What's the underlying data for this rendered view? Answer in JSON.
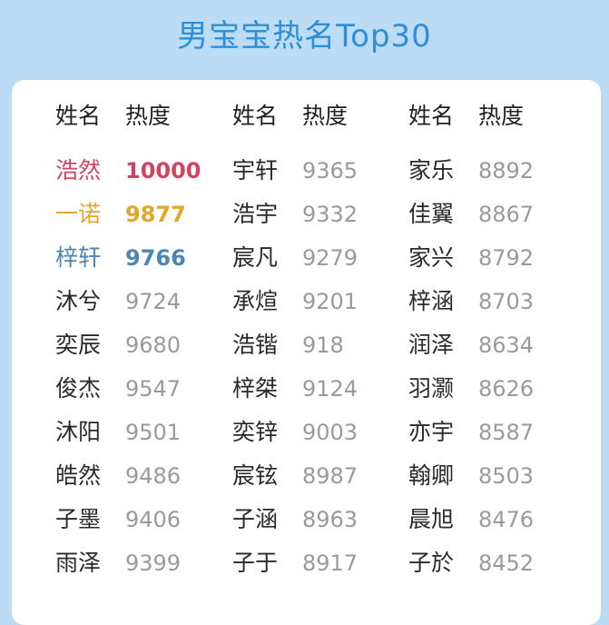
{
  "title": "男宝宝热名Top30",
  "headers": {
    "name": "姓名",
    "heat": "热度"
  },
  "columns": [
    [
      {
        "name": "浩然",
        "heat": "10000",
        "highlight": "#d0455d"
      },
      {
        "name": "一诺",
        "heat": "9877",
        "highlight": "#e0a72c"
      },
      {
        "name": "梓轩",
        "heat": "9766",
        "highlight": "#4b86b4"
      },
      {
        "name": "沐兮",
        "heat": "9724"
      },
      {
        "name": "奕辰",
        "heat": "9680"
      },
      {
        "name": "俊杰",
        "heat": "9547"
      },
      {
        "name": "沐阳",
        "heat": "9501"
      },
      {
        "name": "皓然",
        "heat": "9486"
      },
      {
        "name": "子墨",
        "heat": "9406"
      },
      {
        "name": "雨泽",
        "heat": "9399"
      }
    ],
    [
      {
        "name": "宇轩",
        "heat": "9365"
      },
      {
        "name": "浩宇",
        "heat": "9332"
      },
      {
        "name": "宸凡",
        "heat": "9279"
      },
      {
        "name": "承煊",
        "heat": "9201"
      },
      {
        "name": "浩锴",
        "heat": "918"
      },
      {
        "name": "梓桀",
        "heat": "9124"
      },
      {
        "name": "奕锌",
        "heat": "9003"
      },
      {
        "name": "宸铉",
        "heat": "8987"
      },
      {
        "name": "子涵",
        "heat": "8963"
      },
      {
        "name": "子于",
        "heat": "8917"
      }
    ],
    [
      {
        "name": "家乐",
        "heat": "8892"
      },
      {
        "name": "佳翼",
        "heat": "8867"
      },
      {
        "name": "家兴",
        "heat": "8792"
      },
      {
        "name": "梓涵",
        "heat": "8703"
      },
      {
        "name": "润泽",
        "heat": "8634"
      },
      {
        "name": "羽灏",
        "heat": "8626"
      },
      {
        "name": "亦宇",
        "heat": "8587"
      },
      {
        "name": "翰卿",
        "heat": "8503"
      },
      {
        "name": "晨旭",
        "heat": "8476"
      },
      {
        "name": "子於",
        "heat": "8452"
      }
    ]
  ]
}
